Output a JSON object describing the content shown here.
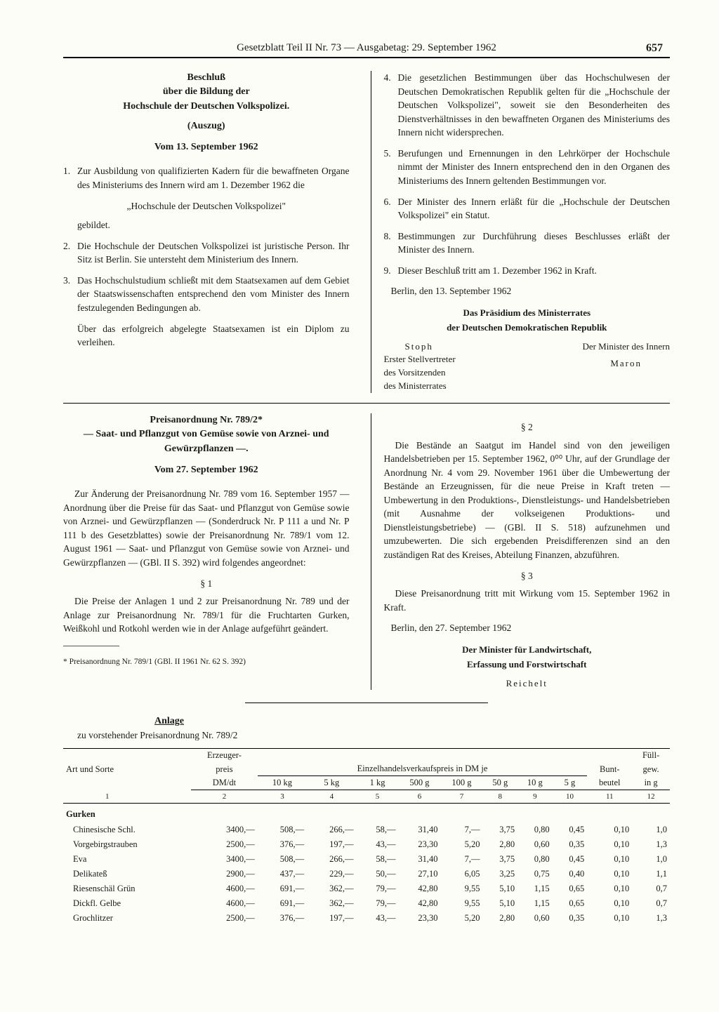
{
  "header": {
    "line": "Gesetzblatt Teil II Nr. 73 — Ausgabetag: 29. September 1962",
    "page_number": "657"
  },
  "decree1": {
    "title1": "Beschluß",
    "title2": "über die Bildung der",
    "title3": "Hochschule der Deutschen Volkspolizei.",
    "subtitle": "(Auszug)",
    "date": "Vom 13. September 1962",
    "items_left": [
      {
        "n": "1.",
        "text": "Zur Ausbildung von qualifizierten Kadern für die bewaffneten Organe des Ministeriums des Innern wird am 1. Dezember 1962 die"
      },
      {
        "quote": "„Hochschule der Deutschen Volkspolizei\""
      },
      {
        "cont": "gebildet."
      },
      {
        "n": "2.",
        "text": "Die Hochschule der Deutschen Volkspolizei ist juristische Person. Ihr Sitz ist Berlin. Sie untersteht dem Ministerium des Innern."
      },
      {
        "n": "3.",
        "text": "Das Hochschulstudium schließt mit dem Staatsexamen auf dem Gebiet der Staatswissenschaften entsprechend den vom Minister des Innern festzulegenden Bedingungen ab."
      },
      {
        "indent": "Über das erfolgreich abgelegte Staatsexamen ist ein Diplom zu verleihen."
      }
    ],
    "items_right": [
      {
        "n": "4.",
        "text": "Die gesetzlichen Bestimmungen über das Hochschulwesen der Deutschen Demokratischen Republik gelten für die „Hochschule der Deutschen Volkspolizei\", soweit sie den Besonderheiten des Dienstverhältnisses in den bewaffneten Organen des Ministeriums des Innern nicht widersprechen."
      },
      {
        "n": "5.",
        "text": "Berufungen und Ernennungen in den Lehrkörper der Hochschule nimmt der Minister des Innern entsprechend den in den Organen des Ministeriums des Innern geltenden Bestimmungen vor."
      },
      {
        "n": "6.",
        "text": "Der Minister des Innern erläßt für die „Hochschule der Deutschen Volkspolizei\" ein Statut."
      },
      {
        "n": "8.",
        "text": "Bestimmungen zur Durchführung dieses Beschlusses erläßt der Minister des Innern."
      },
      {
        "n": "9.",
        "text": "Dieser Beschluß tritt am 1. Dezember 1962 in Kraft."
      }
    ],
    "place_date": "Berlin, den 13. September 1962",
    "presidium1": "Das Präsidium des Ministerrates",
    "presidium2": "der Deutschen Demokratischen Republik",
    "sig_right_title": "Der Minister des Innern",
    "sig_right_name": "Maron",
    "sig_left_name": "Stoph",
    "sig_left_role1": "Erster Stellvertreter",
    "sig_left_role2": "des Vorsitzenden",
    "sig_left_role3": "des Ministerrates"
  },
  "decree2": {
    "title1": "Preisanordnung Nr. 789/2*",
    "title2": "— Saat- und Pflanzgut von Gemüse sowie von Arznei- und Gewürzpflanzen —.",
    "date": "Vom 27. September 1962",
    "intro": "Zur Änderung der Preisanordnung Nr. 789 vom 16. September 1957 — Anordnung über die Preise für das Saat- und Pflanzgut von Gemüse sowie von Arznei- und Gewürzpflanzen — (Sonderdruck Nr. P 111 a und Nr. P 111 b des Gesetzblattes) sowie der Preisanordnung Nr. 789/1 vom 12. August 1961 — Saat- und Pflanzgut von Gemüse sowie von Arznei- und Gewürzpflanzen — (GBl. II S. 392) wird folgendes angeordnet:",
    "s1": "§ 1",
    "p1": "Die Preise der Anlagen 1 und 2 zur Preisanordnung Nr. 789 und der Anlage zur Preisanordnung Nr. 789/1 für die Fruchtarten Gurken, Weißkohl und Rotkohl werden wie in der Anlage aufgeführt geändert.",
    "footnote": "* Preisanordnung Nr. 789/1 (GBl. II 1961 Nr. 62 S. 392)",
    "s2": "§ 2",
    "p2": "Die Bestände an Saatgut im Handel sind von den jeweiligen Handelsbetrieben per 15. September 1962, 0⁰⁰ Uhr, auf der Grundlage der Anordnung Nr. 4 vom 29. November 1961 über die Umbewertung der Bestände an Erzeugnissen, für die neue Preise in Kraft treten — Umbewertung in den Produktions-, Dienstleistungs- und Handelsbetrieben (mit Ausnahme der volkseigenen Produktions- und Dienstleistungsbetriebe) — (GBl. II S. 518) aufzunehmen und umzubewerten. Die sich ergebenden Preisdifferenzen sind an den zuständigen Rat des Kreises, Abteilung Finanzen, abzuführen.",
    "s3": "§ 3",
    "p3": "Diese Preisanordnung tritt mit Wirkung vom 15. September 1962 in Kraft.",
    "place_date": "Berlin, den 27. September 1962",
    "sig1": "Der Minister für Landwirtschaft,",
    "sig2": "Erfassung und Forstwirtschaft",
    "sig_name": "Reichelt"
  },
  "anlage": {
    "title": "Anlage",
    "subtitle": "zu vorstehender Preisanordnung Nr. 789/2",
    "head": {
      "col1": "Art und Sorte",
      "col2a": "Erzeuger-",
      "col2b": "preis",
      "col2c": "DM/dt",
      "span": "Einzelhandelsverkaufspreis in DM je",
      "c3": "10 kg",
      "c4": "5 kg",
      "c5": "1 kg",
      "c6": "500 g",
      "c7": "100 g",
      "c8": "50 g",
      "c9": "10 g",
      "c10": "5 g",
      "c11a": "Bunt-",
      "c11b": "beutel",
      "c12a": "Füll-",
      "c12b": "gew.",
      "c12c": "in g",
      "nums": [
        "1",
        "2",
        "3",
        "4",
        "5",
        "6",
        "7",
        "8",
        "9",
        "10",
        "11",
        "12"
      ]
    },
    "group": "Gurken",
    "rows": [
      {
        "name": "Chinesische Schl.",
        "v": [
          "3400,—",
          "508,—",
          "266,—",
          "58,—",
          "31,40",
          "7,—",
          "3,75",
          "0,80",
          "0,45",
          "0,10",
          "1,0"
        ]
      },
      {
        "name": "Vorgebirgstrauben",
        "v": [
          "2500,—",
          "376,—",
          "197,—",
          "43,—",
          "23,30",
          "5,20",
          "2,80",
          "0,60",
          "0,35",
          "0,10",
          "1,3"
        ]
      },
      {
        "name": "Eva",
        "v": [
          "3400,—",
          "508,—",
          "266,—",
          "58,—",
          "31,40",
          "7,—",
          "3,75",
          "0,80",
          "0,45",
          "0,10",
          "1,0"
        ]
      },
      {
        "name": "Delikateß",
        "v": [
          "2900,—",
          "437,—",
          "229,—",
          "50,—",
          "27,10",
          "6,05",
          "3,25",
          "0,75",
          "0,40",
          "0,10",
          "1,1"
        ]
      },
      {
        "name": "Riesenschäl Grün",
        "v": [
          "4600,—",
          "691,—",
          "362,—",
          "79,—",
          "42,80",
          "9,55",
          "5,10",
          "1,15",
          "0,65",
          "0,10",
          "0,7"
        ]
      },
      {
        "name": "Dickfl. Gelbe",
        "v": [
          "4600,—",
          "691,—",
          "362,—",
          "79,—",
          "42,80",
          "9,55",
          "5,10",
          "1,15",
          "0,65",
          "0,10",
          "0,7"
        ]
      },
      {
        "name": "Grochlitzer",
        "v": [
          "2500,—",
          "376,—",
          "197,—",
          "43,—",
          "23,30",
          "5,20",
          "2,80",
          "0,60",
          "0,35",
          "0,10",
          "1,3"
        ]
      }
    ]
  }
}
